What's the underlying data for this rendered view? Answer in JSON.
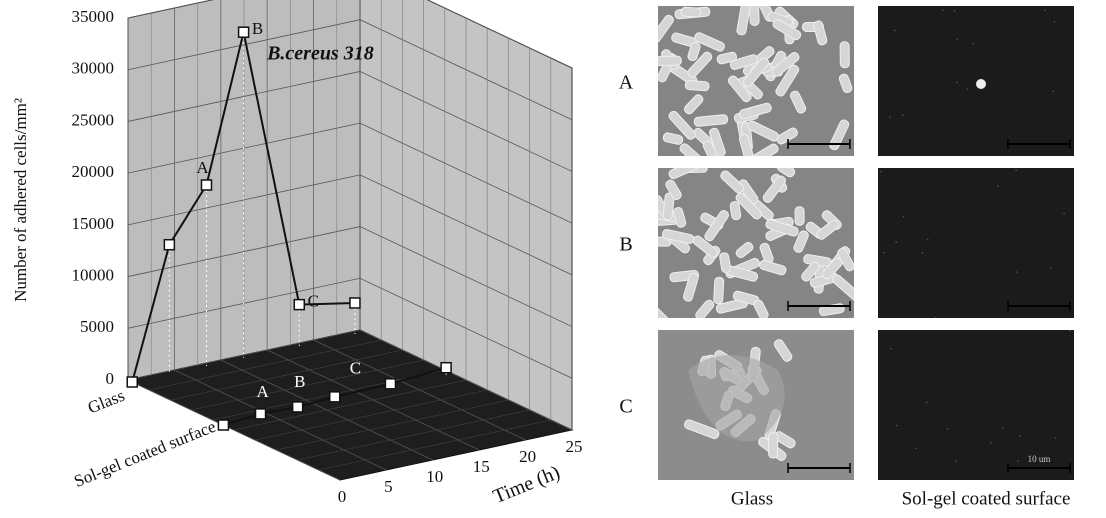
{
  "chart_data": {
    "type": "line3d",
    "title": "B.cereus 318",
    "ylabel": "Number of adhered cells/mm²",
    "xlabel": "Time (h)",
    "xlim": [
      0,
      25
    ],
    "xticks": [
      0,
      5,
      10,
      15,
      20,
      25
    ],
    "ylim": [
      0,
      35000
    ],
    "yticks": [
      0,
      5000,
      10000,
      15000,
      20000,
      25000,
      30000,
      35000
    ],
    "grid": true,
    "series": [
      {
        "name": "Glass",
        "color": "#111111",
        "x": [
          0,
          4,
          8,
          12,
          18,
          24
        ],
        "values": [
          0,
          12500,
          17500,
          31500,
          4000,
          3000
        ],
        "point_labels": [
          null,
          null,
          "A",
          "B",
          "C",
          null
        ]
      },
      {
        "name": "Sol-gel coated surface",
        "color": "#111111",
        "x": [
          0,
          4,
          8,
          12,
          18,
          24
        ],
        "values": [
          0,
          300,
          200,
          400,
          500,
          900
        ],
        "point_labels": [
          null,
          null,
          "A",
          "B",
          "C",
          null
        ]
      }
    ]
  },
  "micrographs": {
    "row_labels": [
      "A",
      "B",
      "C"
    ],
    "column_labels": [
      "Glass",
      "Sol-gel coated surface"
    ],
    "scale_bar_label": "10 um"
  }
}
